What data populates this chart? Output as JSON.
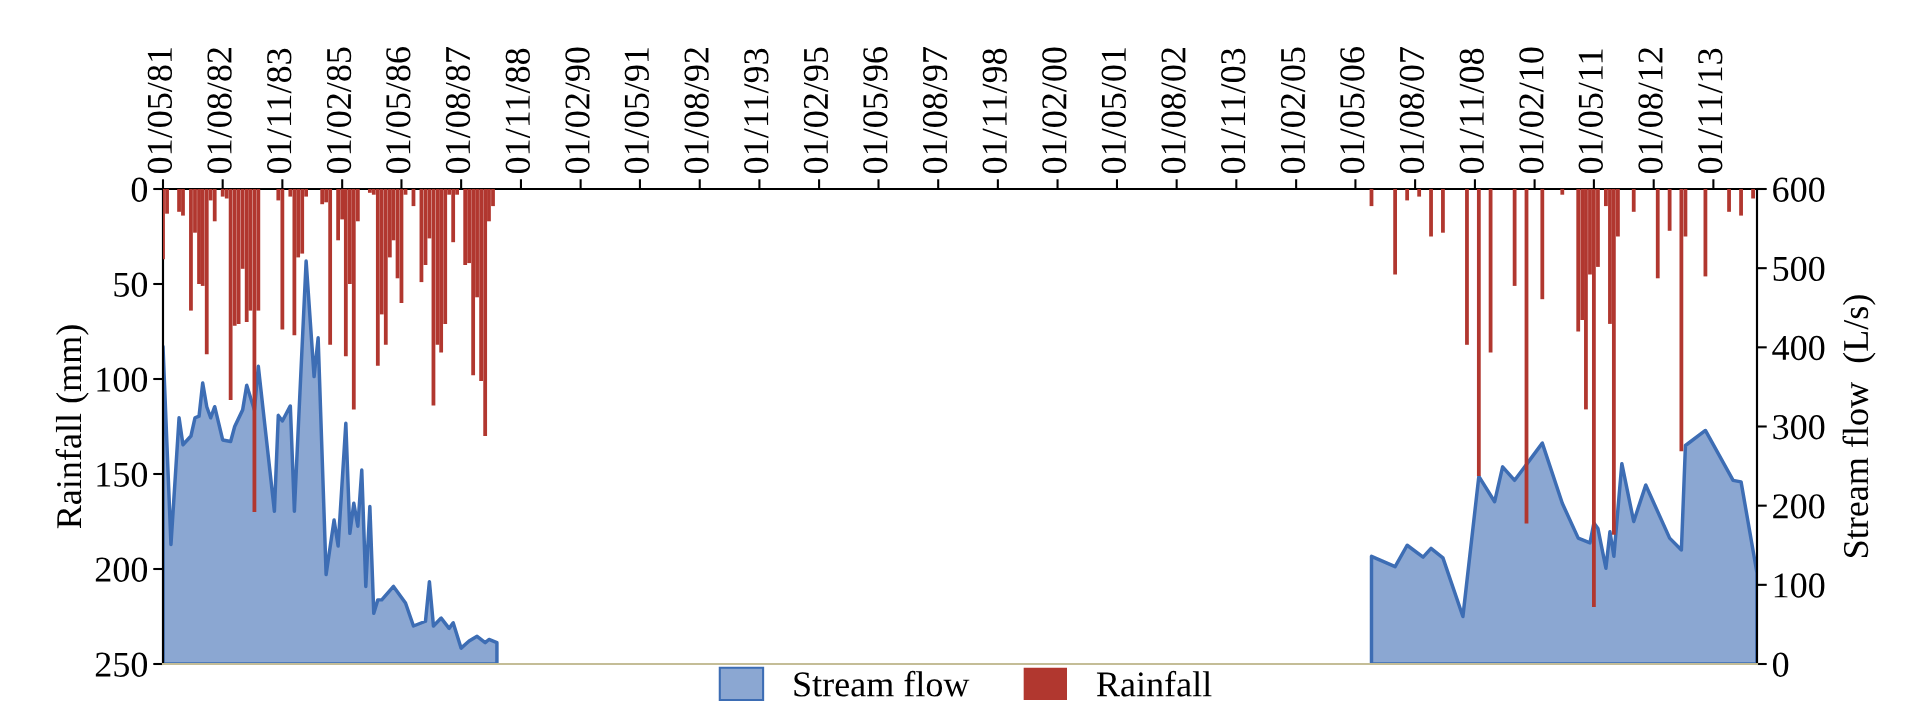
{
  "chart_data": {
    "type": "bar",
    "ylabel": "Rainfall (mm)",
    "y2label": "Stream flow  (L/s)",
    "xlim": [
      "1981-05-01",
      "2014-10-01"
    ],
    "xticks": [
      {
        "value": "1981-05-01",
        "label": "01/05/81"
      },
      {
        "value": "1982-08-01",
        "label": "01/08/82"
      },
      {
        "value": "1983-11-01",
        "label": "01/11/83"
      },
      {
        "value": "1985-02-01",
        "label": "01/02/85"
      },
      {
        "value": "1986-05-01",
        "label": "01/05/86"
      },
      {
        "value": "1987-08-01",
        "label": "01/08/87"
      },
      {
        "value": "1988-11-01",
        "label": "01/11/88"
      },
      {
        "value": "1990-02-01",
        "label": "01/02/90"
      },
      {
        "value": "1991-05-01",
        "label": "01/05/91"
      },
      {
        "value": "1992-08-01",
        "label": "01/08/92"
      },
      {
        "value": "1993-11-01",
        "label": "01/11/93"
      },
      {
        "value": "1995-02-01",
        "label": "01/02/95"
      },
      {
        "value": "1996-05-01",
        "label": "01/05/96"
      },
      {
        "value": "1997-08-01",
        "label": "01/08/97"
      },
      {
        "value": "1998-11-01",
        "label": "01/11/98"
      },
      {
        "value": "2000-02-01",
        "label": "01/02/00"
      },
      {
        "value": "2001-05-01",
        "label": "01/05/01"
      },
      {
        "value": "2002-08-01",
        "label": "01/08/02"
      },
      {
        "value": "2003-11-01",
        "label": "01/11/03"
      },
      {
        "value": "2005-02-01",
        "label": "01/02/05"
      },
      {
        "value": "2006-05-01",
        "label": "01/05/06"
      },
      {
        "value": "2007-08-01",
        "label": "01/08/07"
      },
      {
        "value": "2008-11-01",
        "label": "01/11/08"
      },
      {
        "value": "2010-02-01",
        "label": "01/02/10"
      },
      {
        "value": "2011-05-01",
        "label": "01/05/11"
      },
      {
        "value": "2012-08-01",
        "label": "01/08/12"
      },
      {
        "value": "2013-11-01",
        "label": "01/11/13"
      }
    ],
    "ylim": [
      250,
      0
    ],
    "yticks": [
      0,
      50,
      100,
      150,
      200,
      250
    ],
    "y2lim": [
      0,
      600
    ],
    "y2ticks": [
      0,
      100,
      200,
      300,
      400,
      500,
      600
    ],
    "legend": "bottom",
    "series": [
      {
        "name": "Stream flow",
        "type": "area",
        "axis": "y2",
        "color": "#3d6db4",
        "x": [
          "1981-05",
          "1981-07",
          "1981-09",
          "1981-10",
          "1981-12",
          "1982-01",
          "1982-02",
          "1982-03",
          "1982-04",
          "1982-05",
          "1982-06",
          "1982-08",
          "1982-10",
          "1982-11",
          "1983-01",
          "1983-02",
          "1983-04",
          "1983-05",
          "1983-09",
          "1983-10",
          "1983-11",
          "1984-01",
          "1984-02",
          "1984-05",
          "1984-07",
          "1984-08",
          "1984-10",
          "1984-12",
          "1985-01",
          "1985-03",
          "1985-04",
          "1985-05",
          "1985-06",
          "1985-07",
          "1985-08",
          "1985-09",
          "1985-10",
          "1985-11",
          "1985-12",
          "1986-03",
          "1986-06",
          "1986-08",
          "1986-11",
          "1986-12",
          "1987-01",
          "1987-03",
          "1987-05",
          "1987-06",
          "1987-08",
          "1987-10",
          "1987-12",
          "1988-02",
          "1988-03",
          "1988-05",
          "1988-06",
          "2006-09",
          "2007-03",
          "2007-06",
          "2007-10",
          "2007-12",
          "2008-03",
          "2008-08",
          "2008-12",
          "2009-04",
          "2009-06",
          "2009-09",
          "2010-04",
          "2010-09",
          "2011-01",
          "2011-04",
          "2011-05",
          "2011-06",
          "2011-08",
          "2011-09",
          "2011-10",
          "2011-12",
          "2012-03",
          "2012-06",
          "2012-12",
          "2013-03",
          "2013-04",
          "2013-09",
          "2014-04",
          "2014-06",
          "2014-10"
        ],
        "values": [
          401,
          151,
          311,
          277,
          288,
          311,
          313,
          355,
          325,
          311,
          325,
          283,
          281,
          300,
          321,
          352,
          321,
          376,
          193,
          314,
          307,
          326,
          193,
          509,
          363,
          412,
          113,
          182,
          149,
          304,
          165,
          203,
          174,
          245,
          98,
          199,
          64,
          81,
          81,
          98,
          77,
          48,
          54,
          104,
          48,
          58,
          45,
          52,
          20,
          29,
          35,
          27,
          31,
          27,
          null,
          136,
          123,
          150,
          135,
          146,
          134,
          60,
          237,
          205,
          249,
          232,
          279,
          203,
          159,
          153,
          178,
          171,
          121,
          167,
          136,
          253,
          180,
          226,
          159,
          144,
          276,
          295,
          232,
          230,
          115
        ]
      },
      {
        "name": "Rainfall",
        "axis": "y",
        "color": "#b1372f",
        "x": [
          "1981-05",
          "1981-06",
          "1981-09",
          "1981-10",
          "1981-12",
          "1982-01",
          "1982-02",
          "1982-03",
          "1982-04",
          "1982-05",
          "1982-06",
          "1982-08",
          "1982-09",
          "1982-10",
          "1982-11",
          "1982-12",
          "1983-01",
          "1983-02",
          "1983-03",
          "1983-04",
          "1983-05",
          "1983-10",
          "1983-11",
          "1984-01",
          "1984-02",
          "1984-03",
          "1984-04",
          "1984-05",
          "1984-09",
          "1984-10",
          "1984-11",
          "1985-01",
          "1985-02",
          "1985-03",
          "1985-04",
          "1985-05",
          "1985-06",
          "1985-09",
          "1985-10",
          "1985-11",
          "1985-12",
          "1986-01",
          "1986-02",
          "1986-03",
          "1986-04",
          "1986-05",
          "1986-06",
          "1986-08",
          "1986-10",
          "1986-11",
          "1986-12",
          "1987-01",
          "1987-02",
          "1987-03",
          "1987-04",
          "1987-05",
          "1987-06",
          "1987-07",
          "1987-09",
          "1987-10",
          "1987-11",
          "1987-12",
          "1988-01",
          "1988-02",
          "1988-03",
          "1988-04",
          "2006-09",
          "2007-03",
          "2007-06",
          "2007-09",
          "2007-12",
          "2008-03",
          "2008-09",
          "2008-12",
          "2009-03",
          "2009-09",
          "2009-12",
          "2010-04",
          "2010-09",
          "2011-01",
          "2011-02",
          "2011-03",
          "2011-04",
          "2011-05",
          "2011-06",
          "2011-08",
          "2011-09",
          "2011-10",
          "2011-11",
          "2012-03",
          "2012-09",
          "2012-12",
          "2013-03",
          "2013-04",
          "2013-09",
          "2014-03",
          "2014-06",
          "2014-09"
        ],
        "values": [
          37,
          13,
          12,
          14,
          64,
          23,
          50,
          51,
          87,
          6,
          17,
          4,
          5,
          111,
          72,
          71,
          42,
          70,
          64,
          170,
          64,
          6,
          74,
          4,
          77,
          36,
          34,
          4,
          8,
          7,
          82,
          27,
          16,
          88,
          50,
          116,
          17,
          2,
          3,
          93,
          66,
          82,
          36,
          27,
          47,
          60,
          3,
          9,
          49,
          40,
          26,
          114,
          82,
          86,
          71,
          3,
          28,
          3,
          40,
          39,
          98,
          57,
          101,
          130,
          17,
          9,
          9,
          45,
          6,
          4,
          25,
          23,
          82,
          151,
          86,
          51,
          176,
          58,
          3,
          75,
          69,
          116,
          45,
          220,
          41,
          9,
          71,
          182,
          25,
          12,
          47,
          22,
          138,
          25,
          46,
          12,
          14,
          5
        ]
      }
    ]
  }
}
